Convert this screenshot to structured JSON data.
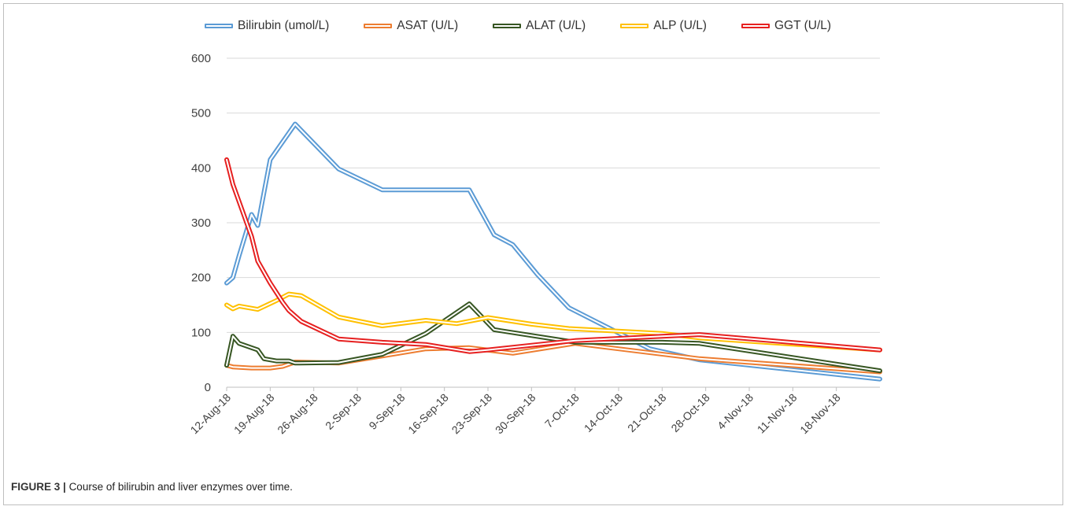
{
  "caption": {
    "figure_label": "FIGURE 3 |",
    "text": "Course of bilirubin and liver enzymes over time."
  },
  "chart_data": {
    "type": "line",
    "title": "",
    "xlabel": "",
    "ylabel": "",
    "ylim": [
      0,
      600
    ],
    "yticks": [
      0,
      100,
      200,
      300,
      400,
      500,
      600
    ],
    "x_tick_labels": [
      "12-Aug-18",
      "19-Aug-18",
      "26-Aug-18",
      "2-Sep-18",
      "9-Sep-18",
      "16-Sep-18",
      "23-Sep-18",
      "30-Sep-18",
      "7-Oct-18",
      "14-Oct-18",
      "21-Oct-18",
      "28-Oct-18",
      "4-Nov-18",
      "11-Nov-18",
      "18-Nov-18"
    ],
    "x_start": "12-Aug-18",
    "x_end": "25-Nov-18",
    "grid": "horizontal",
    "legend_position": "top",
    "series": [
      {
        "name": "Bilirubin (umol/L)",
        "color": "#5b9bd5",
        "points": [
          [
            "12-Aug-18",
            190
          ],
          [
            "13-Aug-18",
            200
          ],
          [
            "14-Aug-18",
            240
          ],
          [
            "16-Aug-18",
            315
          ],
          [
            "17-Aug-18",
            295
          ],
          [
            "19-Aug-18",
            415
          ],
          [
            "23-Aug-18",
            480
          ],
          [
            "30-Aug-18",
            398
          ],
          [
            "6-Sep-18",
            360
          ],
          [
            "13-Sep-18",
            360
          ],
          [
            "20-Sep-18",
            360
          ],
          [
            "24-Sep-18",
            278
          ],
          [
            "27-Sep-18",
            260
          ],
          [
            "1-Oct-18",
            205
          ],
          [
            "6-Oct-18",
            145
          ],
          [
            "19-Oct-18",
            70
          ],
          [
            "27-Oct-18",
            50
          ],
          [
            "25-Nov-18",
            15
          ]
        ]
      },
      {
        "name": "ASAT (U/L)",
        "color": "#ed7d31",
        "points": [
          [
            "12-Aug-18",
            40
          ],
          [
            "13-Aug-18",
            37
          ],
          [
            "16-Aug-18",
            35
          ],
          [
            "19-Aug-18",
            35
          ],
          [
            "21-Aug-18",
            38
          ],
          [
            "23-Aug-18",
            46
          ],
          [
            "30-Aug-18",
            44
          ],
          [
            "6-Sep-18",
            57
          ],
          [
            "13-Sep-18",
            70
          ],
          [
            "20-Sep-18",
            72
          ],
          [
            "27-Sep-18",
            62
          ],
          [
            "7-Oct-18",
            80
          ],
          [
            "14-Oct-18",
            70
          ],
          [
            "27-Oct-18",
            52
          ],
          [
            "25-Nov-18",
            28
          ]
        ]
      },
      {
        "name": "ALAT (U/L)",
        "color": "#375623",
        "points": [
          [
            "12-Aug-18",
            40
          ],
          [
            "13-Aug-18",
            93
          ],
          [
            "14-Aug-18",
            80
          ],
          [
            "16-Aug-18",
            72
          ],
          [
            "17-Aug-18",
            68
          ],
          [
            "18-Aug-18",
            52
          ],
          [
            "20-Aug-18",
            48
          ],
          [
            "22-Aug-18",
            48
          ],
          [
            "23-Aug-18",
            44
          ],
          [
            "30-Aug-18",
            45
          ],
          [
            "6-Sep-18",
            60
          ],
          [
            "13-Sep-18",
            98
          ],
          [
            "20-Sep-18",
            152
          ],
          [
            "24-Sep-18",
            105
          ],
          [
            "7-Oct-18",
            82
          ],
          [
            "21-Oct-18",
            82
          ],
          [
            "27-Oct-18",
            80
          ],
          [
            "25-Nov-18",
            30
          ]
        ]
      },
      {
        "name": "ALP (U/L)",
        "color": "#ffc000",
        "points": [
          [
            "12-Aug-18",
            150
          ],
          [
            "13-Aug-18",
            143
          ],
          [
            "14-Aug-18",
            148
          ],
          [
            "17-Aug-18",
            142
          ],
          [
            "20-Aug-18",
            158
          ],
          [
            "22-Aug-18",
            170
          ],
          [
            "24-Aug-18",
            167
          ],
          [
            "30-Aug-18",
            128
          ],
          [
            "6-Sep-18",
            112
          ],
          [
            "13-Sep-18",
            122
          ],
          [
            "18-Sep-18",
            116
          ],
          [
            "23-Sep-18",
            127
          ],
          [
            "30-Sep-18",
            115
          ],
          [
            "6-Oct-18",
            107
          ],
          [
            "21-Oct-18",
            98
          ],
          [
            "27-Oct-18",
            90
          ],
          [
            "25-Nov-18",
            68
          ]
        ]
      },
      {
        "name": "GGT (U/L)",
        "color": "#e62020",
        "points": [
          [
            "12-Aug-18",
            415
          ],
          [
            "13-Aug-18",
            370
          ],
          [
            "16-Aug-18",
            275
          ],
          [
            "17-Aug-18",
            230
          ],
          [
            "19-Aug-18",
            190
          ],
          [
            "21-Aug-18",
            155
          ],
          [
            "22-Aug-18",
            140
          ],
          [
            "24-Aug-18",
            120
          ],
          [
            "30-Aug-18",
            88
          ],
          [
            "6-Sep-18",
            82
          ],
          [
            "13-Sep-18",
            78
          ],
          [
            "20-Sep-18",
            65
          ],
          [
            "23-Sep-18",
            68
          ],
          [
            "7-Oct-18",
            85
          ],
          [
            "21-Oct-18",
            93
          ],
          [
            "27-Oct-18",
            96
          ],
          [
            "25-Nov-18",
            68
          ]
        ]
      }
    ]
  }
}
